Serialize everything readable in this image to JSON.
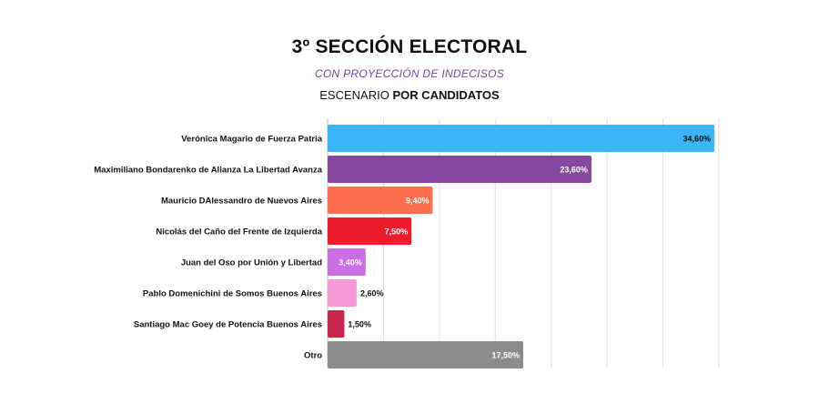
{
  "header": {
    "title": "3º SECCIÓN ELECTORAL",
    "subtitle": "CON PROYECCIÓN DE INDECISOS",
    "scenario_prefix": "ESCENARIO",
    "scenario_bold": "POR CANDIDATOS"
  },
  "chart_data": {
    "type": "bar",
    "orientation": "horizontal",
    "title": "3º SECCIÓN ELECTORAL",
    "subtitle": "CON PROYECCIÓN DE INDECISOS",
    "categories": [
      "Verónica Magario de Fuerza Patria",
      "Maximiliano Bondarenko de Alianza La Libertad Avanza",
      "Mauricio DAlessandro de Nuevos Aires",
      "Nicolás del Caño del Frente de Izquierda",
      "Juan del Oso por Unión y Libertad",
      "Pablo Domenichini de Somos Buenos Aires",
      "Santiago Mac Goey de Potencia Buenos Aires",
      "Otro"
    ],
    "values": [
      34.6,
      23.6,
      9.4,
      7.5,
      3.4,
      2.6,
      1.5,
      17.5
    ],
    "value_labels": [
      "34,60%",
      "23,60%",
      "9,40%",
      "7,50%",
      "3,40%",
      "2,60%",
      "1,50%",
      "17,50%"
    ],
    "colors": [
      "#3db5fb",
      "#86479f",
      "#ff6f4f",
      "#ee1b2d",
      "#cc6fe6",
      "#f99ad8",
      "#c7254b",
      "#8c8c8c"
    ],
    "label_colors": [
      "#111111",
      "#ffffff",
      "#ffffff",
      "#ffffff",
      "#ffffff",
      "#111111",
      "#111111",
      "#ffffff"
    ],
    "label_inside": [
      true,
      true,
      true,
      true,
      true,
      false,
      false,
      true
    ],
    "xlim": [
      0,
      35
    ],
    "grid": true,
    "legend": "none"
  }
}
